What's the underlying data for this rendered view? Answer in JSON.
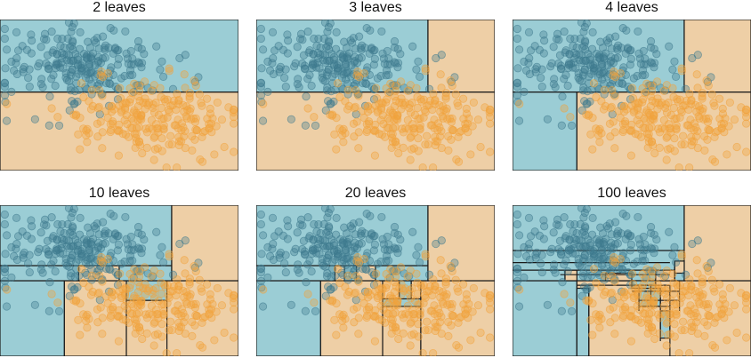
{
  "colors": {
    "class_a_region": "#9BCDD5",
    "class_b_region": "#EECFA6",
    "class_a_point": "#3E7A8E",
    "class_b_point": "#F2A23C",
    "boundary": "#1a1a1a"
  },
  "chart_data": [
    {
      "type": "scatter",
      "title": "2 leaves",
      "xlim": [
        0,
        1
      ],
      "ylim": [
        0,
        1
      ],
      "regions": [
        {
          "x0": 0,
          "x1": 1,
          "y0": 0.0,
          "y1": 0.52,
          "class": "b"
        },
        {
          "x0": 0,
          "x1": 1,
          "y0": 0.52,
          "y1": 1.0,
          "class": "a"
        }
      ]
    },
    {
      "type": "scatter",
      "title": "3 leaves",
      "xlim": [
        0,
        1
      ],
      "ylim": [
        0,
        1
      ],
      "regions": [
        {
          "x0": 0,
          "x1": 1,
          "y0": 0.0,
          "y1": 0.52,
          "class": "b"
        },
        {
          "x0": 0,
          "x1": 0.72,
          "y0": 0.52,
          "y1": 1.0,
          "class": "a"
        },
        {
          "x0": 0.72,
          "x1": 1,
          "y0": 0.52,
          "y1": 1.0,
          "class": "b"
        }
      ]
    },
    {
      "type": "scatter",
      "title": "4 leaves",
      "xlim": [
        0,
        1
      ],
      "ylim": [
        0,
        1
      ],
      "regions": [
        {
          "x0": 0,
          "x1": 0.27,
          "y0": 0.0,
          "y1": 0.52,
          "class": "a"
        },
        {
          "x0": 0.27,
          "x1": 1,
          "y0": 0.0,
          "y1": 0.52,
          "class": "b"
        },
        {
          "x0": 0,
          "x1": 0.72,
          "y0": 0.52,
          "y1": 1.0,
          "class": "a"
        },
        {
          "x0": 0.72,
          "x1": 1,
          "y0": 0.52,
          "y1": 1.0,
          "class": "b"
        }
      ]
    },
    {
      "type": "scatter",
      "title": "10 leaves",
      "xlim": [
        0,
        1
      ],
      "ylim": [
        0,
        1
      ],
      "regions": [
        {
          "x0": 0,
          "x1": 0.27,
          "y0": 0.0,
          "y1": 0.5,
          "class": "a"
        },
        {
          "x0": 0.27,
          "x1": 0.53,
          "y0": 0.0,
          "y1": 0.5,
          "class": "b"
        },
        {
          "x0": 0.53,
          "x1": 0.7,
          "y0": 0.0,
          "y1": 0.37,
          "class": "b"
        },
        {
          "x0": 0.53,
          "x1": 0.7,
          "y0": 0.37,
          "y1": 0.5,
          "class": "a"
        },
        {
          "x0": 0.7,
          "x1": 1,
          "y0": 0.0,
          "y1": 0.5,
          "class": "b"
        },
        {
          "x0": 0,
          "x1": 0.33,
          "y0": 0.5,
          "y1": 0.6,
          "class": "a"
        },
        {
          "x0": 0.33,
          "x1": 0.5,
          "y0": 0.5,
          "y1": 0.6,
          "class": "b"
        },
        {
          "x0": 0.5,
          "x1": 0.72,
          "y0": 0.5,
          "y1": 0.6,
          "class": "a"
        },
        {
          "x0": 0,
          "x1": 0.72,
          "y0": 0.6,
          "y1": 1.0,
          "class": "a"
        },
        {
          "x0": 0.72,
          "x1": 1,
          "y0": 0.5,
          "y1": 1.0,
          "class": "b"
        }
      ]
    },
    {
      "type": "scatter",
      "title": "20 leaves",
      "xlim": [
        0,
        1
      ],
      "ylim": [
        0,
        1
      ],
      "regions": [
        {
          "x0": 0,
          "x1": 0.27,
          "y0": 0.0,
          "y1": 0.5,
          "class": "a"
        },
        {
          "x0": 0.27,
          "x1": 0.53,
          "y0": 0.0,
          "y1": 0.5,
          "class": "b"
        },
        {
          "x0": 0.53,
          "x1": 0.69,
          "y0": 0.0,
          "y1": 0.33,
          "class": "b"
        },
        {
          "x0": 0.53,
          "x1": 0.69,
          "y0": 0.33,
          "y1": 0.38,
          "class": "a"
        },
        {
          "x0": 0.53,
          "x1": 0.6,
          "y0": 0.38,
          "y1": 0.5,
          "class": "b"
        },
        {
          "x0": 0.6,
          "x1": 0.65,
          "y0": 0.38,
          "y1": 0.5,
          "class": "a"
        },
        {
          "x0": 0.65,
          "x1": 0.69,
          "y0": 0.38,
          "y1": 0.5,
          "class": "b"
        },
        {
          "x0": 0.69,
          "x1": 1,
          "y0": 0.0,
          "y1": 0.5,
          "class": "b"
        },
        {
          "x0": 0,
          "x1": 0.33,
          "y0": 0.5,
          "y1": 0.6,
          "class": "a"
        },
        {
          "x0": 0.33,
          "x1": 0.37,
          "y0": 0.5,
          "y1": 0.6,
          "class": "b"
        },
        {
          "x0": 0.37,
          "x1": 0.42,
          "y0": 0.5,
          "y1": 0.6,
          "class": "a"
        },
        {
          "x0": 0.42,
          "x1": 0.5,
          "y0": 0.5,
          "y1": 0.6,
          "class": "b"
        },
        {
          "x0": 0.5,
          "x1": 0.72,
          "y0": 0.5,
          "y1": 0.6,
          "class": "a"
        },
        {
          "x0": 0,
          "x1": 0.72,
          "y0": 0.6,
          "y1": 1.0,
          "class": "a"
        },
        {
          "x0": 0.72,
          "x1": 1,
          "y0": 0.5,
          "y1": 1.0,
          "class": "b"
        }
      ]
    },
    {
      "type": "scatter",
      "title": "100 leaves",
      "xlim": [
        0,
        1
      ],
      "ylim": [
        0,
        1
      ],
      "regions": [
        {
          "x0": 0,
          "x1": 0.27,
          "y0": 0.0,
          "y1": 0.5,
          "class": "a"
        },
        {
          "x0": 0.27,
          "x1": 1,
          "y0": 0.0,
          "y1": 0.5,
          "class": "b"
        },
        {
          "x0": 0,
          "x1": 0.72,
          "y0": 0.5,
          "y1": 1.0,
          "class": "a"
        },
        {
          "x0": 0.72,
          "x1": 1,
          "y0": 0.5,
          "y1": 1.0,
          "class": "b"
        },
        {
          "x0": 0.27,
          "x1": 0.32,
          "y0": 0.0,
          "y1": 0.45,
          "class": "a"
        },
        {
          "x0": 0.53,
          "x1": 0.62,
          "y0": 0.33,
          "y1": 0.45,
          "class": "a"
        },
        {
          "x0": 0.62,
          "x1": 0.66,
          "y0": 0.12,
          "y1": 0.3,
          "class": "a"
        },
        {
          "x0": 0.5,
          "x1": 0.6,
          "y0": 0.45,
          "y1": 0.5,
          "class": "a"
        },
        {
          "x0": 0.39,
          "x1": 0.5,
          "y0": 0.5,
          "y1": 0.55,
          "class": "b"
        },
        {
          "x0": 0.6,
          "x1": 0.68,
          "y0": 0.5,
          "y1": 0.57,
          "class": "b"
        },
        {
          "x0": 0.68,
          "x1": 0.72,
          "y0": 0.55,
          "y1": 0.63,
          "class": "b"
        },
        {
          "x0": 0.22,
          "x1": 0.27,
          "y0": 0.5,
          "y1": 0.57,
          "class": "b"
        }
      ],
      "extra_splits": [
        {
          "y": 0.7,
          "x0": 0.0,
          "x1": 0.72
        },
        {
          "y": 0.62,
          "x0": 0.0,
          "x1": 0.66
        },
        {
          "y": 0.57,
          "x0": 0.0,
          "x1": 0.64
        },
        {
          "y": 0.54,
          "x0": 0.2,
          "x1": 0.66
        },
        {
          "y": 0.47,
          "x0": 0.27,
          "x1": 0.66
        },
        {
          "y": 0.43,
          "x0": 0.5,
          "x1": 0.7
        },
        {
          "y": 0.37,
          "x0": 0.53,
          "x1": 0.7
        },
        {
          "y": 0.33,
          "x0": 0.53,
          "x1": 0.66
        },
        {
          "x": 0.32,
          "y0": 0.0,
          "y1": 0.45
        },
        {
          "x": 0.53,
          "y0": 0.3,
          "y1": 0.47
        },
        {
          "x": 0.58,
          "y0": 0.33,
          "y1": 0.47
        },
        {
          "x": 0.62,
          "y0": 0.1,
          "y1": 0.45
        },
        {
          "x": 0.66,
          "y0": 0.0,
          "y1": 0.47
        },
        {
          "x": 0.7,
          "y0": 0.3,
          "y1": 0.5
        },
        {
          "x": 0.68,
          "y0": 0.5,
          "y1": 0.63
        },
        {
          "x": 0.22,
          "y0": 0.5,
          "y1": 0.57
        }
      ]
    }
  ]
}
